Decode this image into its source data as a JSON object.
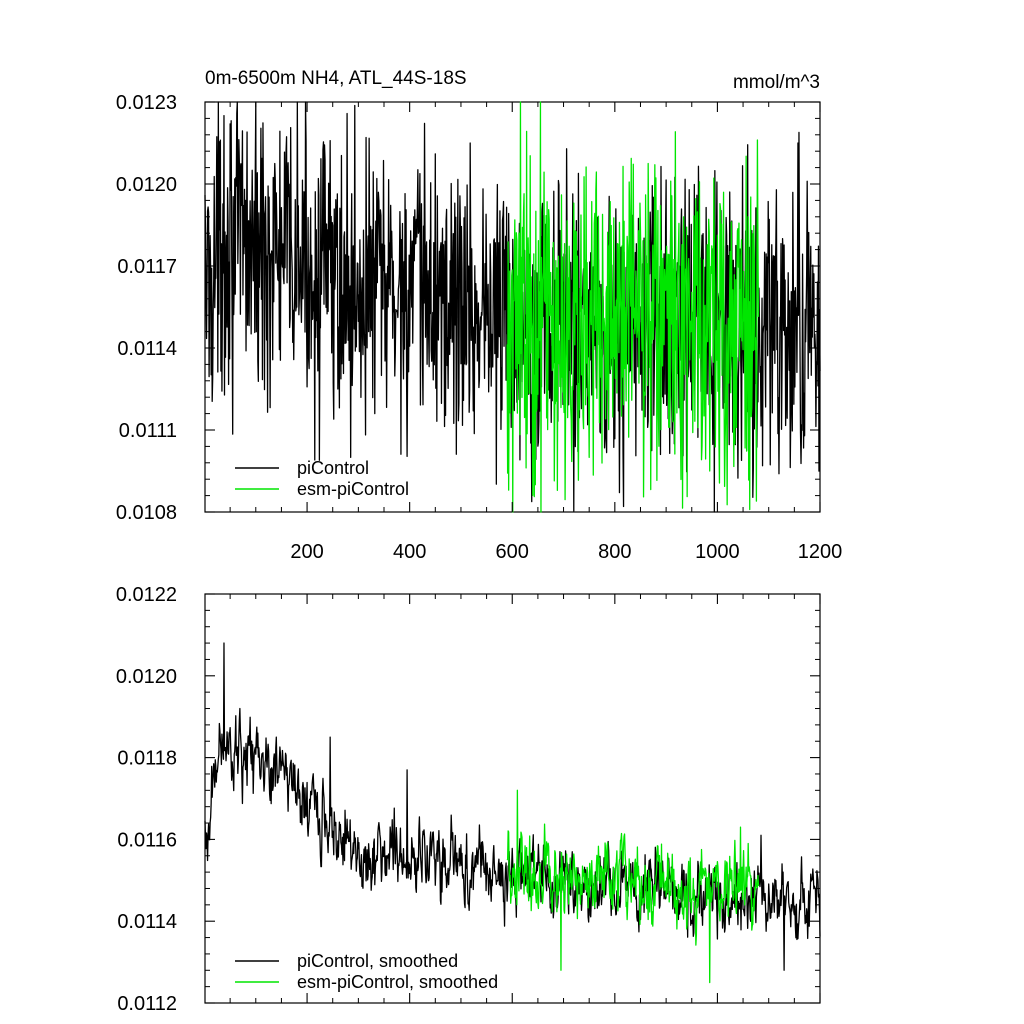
{
  "colors": {
    "piControl": "#000000",
    "esm_piControl": "#00e600",
    "axis": "#000000",
    "background": "#ffffff"
  },
  "chart_data": [
    {
      "type": "line",
      "title": "0m-6500m NH4, ATL_44S-18S",
      "units": "mmol/m^3",
      "xlabel": "",
      "ylabel": "",
      "xlim": [
        1,
        1200
      ],
      "ylim": [
        0.0108,
        0.0123
      ],
      "xticks": [
        200,
        400,
        600,
        800,
        1000,
        1200
      ],
      "xtick_labels": [
        "200",
        "400",
        "600",
        "800",
        "1000",
        "1200"
      ],
      "yticks": [
        0.0108,
        0.0111,
        0.0114,
        0.0117,
        0.012,
        0.0123
      ],
      "ytick_labels": [
        "0.0108",
        "0.0111",
        "0.0114",
        "0.0117",
        "0.0120",
        "0.0123"
      ],
      "grid": false,
      "legend_position": "bottom-left",
      "series": [
        {
          "name": "piControl",
          "color": "#000000",
          "x": [
            1,
            1200
          ],
          "anchor_x": [
            1,
            40,
            100,
            200,
            300,
            400,
            500,
            600,
            700,
            800,
            900,
            1000,
            1100,
            1200
          ],
          "anchor_y": [
            0.01163,
            0.01178,
            0.01177,
            0.0117,
            0.01163,
            0.0116,
            0.01157,
            0.01151,
            0.0115,
            0.01148,
            0.01148,
            0.01146,
            0.01147,
            0.01145
          ],
          "noise": 0.00026,
          "extremes": [
            {
              "x": 38,
              "y": 0.01225
            },
            {
              "x": 50,
              "y": 0.01222
            },
            {
              "x": 83,
              "y": 0.01219
            },
            {
              "x": 450,
              "y": 0.01211
            },
            {
              "x": 1175,
              "y": 0.01201
            },
            {
              "x": 252,
              "y": 0.01114
            },
            {
              "x": 285,
              "y": 0.011
            },
            {
              "x": 817,
              "y": 0.01082
            },
            {
              "x": 1120,
              "y": 0.01094
            }
          ]
        },
        {
          "name": "esm-piControl",
          "color": "#00e600",
          "x": [
            590,
            1080
          ],
          "anchor_x": [
            590,
            700,
            800,
            900,
            1000,
            1080
          ],
          "anchor_y": [
            0.01152,
            0.01151,
            0.0115,
            0.01148,
            0.01148,
            0.01148
          ],
          "noise": 0.0003,
          "extremes": [
            {
              "x": 645,
              "y": 0.0109
            },
            {
              "x": 720,
              "y": 0.01193
            },
            {
              "x": 985,
              "y": 0.01095
            },
            {
              "x": 1060,
              "y": 0.01188
            }
          ]
        }
      ],
      "legend": [
        "piControl",
        "esm-piControl"
      ]
    },
    {
      "type": "line",
      "title": "",
      "xlabel": "",
      "ylabel": "",
      "xlim": [
        1,
        1200
      ],
      "ylim": [
        0.0112,
        0.0122
      ],
      "xticks": [
        200,
        400,
        600,
        800,
        1000,
        1200
      ],
      "yticks": [
        0.0112,
        0.0114,
        0.0116,
        0.0118,
        0.012,
        0.0122
      ],
      "ytick_labels": [
        "0.0112",
        "0.0114",
        "0.0116",
        "0.0118",
        "0.0120",
        "0.0122"
      ],
      "grid": false,
      "legend_position": "bottom-left",
      "series": [
        {
          "name": "piControl, smoothed",
          "color": "#000000",
          "x": [
            1,
            1200
          ],
          "anchor_x": [
            1,
            5,
            20,
            40,
            60,
            100,
            150,
            200,
            250,
            300,
            400,
            500,
            600,
            700,
            800,
            900,
            1000,
            1100,
            1200
          ],
          "anchor_y": [
            0.01163,
            0.01163,
            0.0118,
            0.01185,
            0.01178,
            0.0118,
            0.01178,
            0.0117,
            0.01163,
            0.01158,
            0.01156,
            0.01153,
            0.01152,
            0.0115,
            0.01149,
            0.01148,
            0.01146,
            0.01146,
            0.01144
          ],
          "noise": 8e-05,
          "extremes": [
            {
              "x": 38,
              "y": 0.01208
            },
            {
              "x": 245,
              "y": 0.01185
            },
            {
              "x": 395,
              "y": 0.01177
            },
            {
              "x": 1085,
              "y": 0.01161
            },
            {
              "x": 1130,
              "y": 0.01128
            }
          ]
        },
        {
          "name": "esm-piControl, smoothed",
          "color": "#00e600",
          "x": [
            590,
            1080
          ],
          "anchor_x": [
            590,
            700,
            800,
            900,
            1000,
            1080
          ],
          "anchor_y": [
            0.01152,
            0.01151,
            0.0115,
            0.01148,
            0.01148,
            0.01147
          ],
          "noise": 9e-05,
          "extremes": [
            {
              "x": 610,
              "y": 0.01172
            },
            {
              "x": 695,
              "y": 0.01128
            },
            {
              "x": 985,
              "y": 0.01125
            },
            {
              "x": 1045,
              "y": 0.01163
            }
          ]
        }
      ],
      "legend": [
        "piControl, smoothed",
        "esm-piControl, smoothed"
      ]
    }
  ]
}
